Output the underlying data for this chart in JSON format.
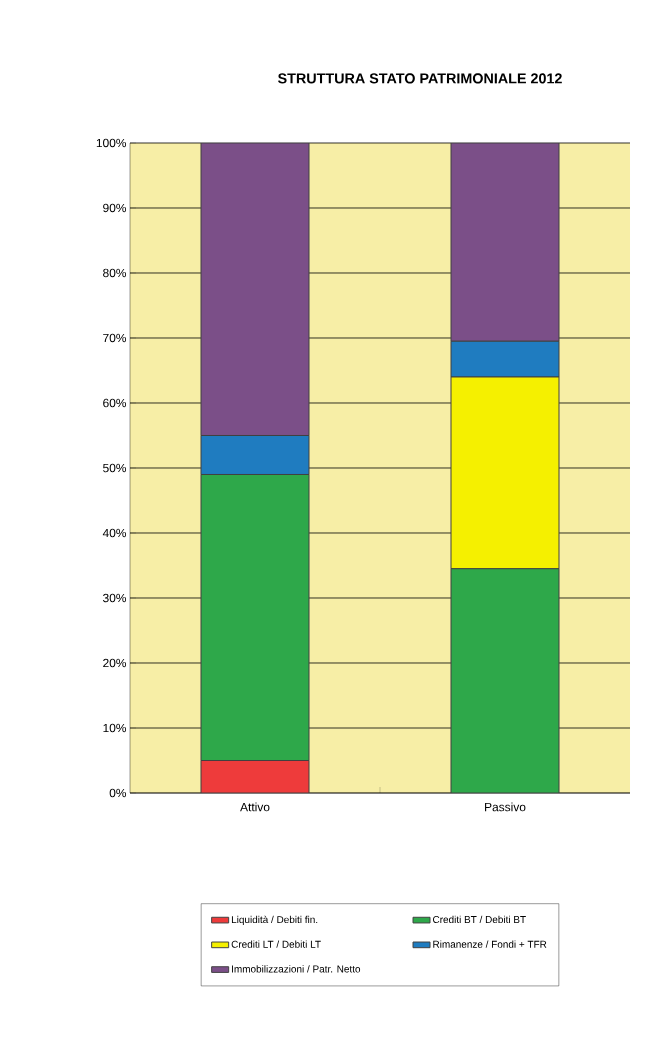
{
  "chart_data": {
    "type": "bar",
    "stacked": true,
    "title": "STRUTTURA STATO PATRIMONIALE 2012",
    "categories": [
      "Attivo",
      "Passivo"
    ],
    "series": [
      {
        "name": "Liquidità / Debiti fin.",
        "color": "#ee3b3b",
        "values": [
          5,
          0
        ]
      },
      {
        "name": "Crediti BT / Debiti BT",
        "color": "#2ea84a",
        "values": [
          44,
          34.5
        ]
      },
      {
        "name": "Crediti LT / Debiti LT",
        "color": "#f5f000",
        "values": [
          0,
          29.5
        ]
      },
      {
        "name": "Rimanenze / Fondi + TFR",
        "color": "#1f7cc0",
        "values": [
          6,
          5.5
        ]
      },
      {
        "name": "Immobilizzazioni / Patr. Netto",
        "color": "#7b4f88",
        "values": [
          45,
          30.5
        ]
      }
    ],
    "ylim": [
      0,
      100
    ],
    "yticks": [
      {
        "value": 0,
        "label": "0%"
      },
      {
        "value": 10,
        "label": "10%"
      },
      {
        "value": 20,
        "label": "20%"
      },
      {
        "value": 30,
        "label": "30%"
      },
      {
        "value": 40,
        "label": "40%"
      },
      {
        "value": 50,
        "label": "50%"
      },
      {
        "value": 60,
        "label": "60%"
      },
      {
        "value": 70,
        "label": "70%"
      },
      {
        "value": 80,
        "label": "80%"
      },
      {
        "value": 90,
        "label": "90%"
      },
      {
        "value": 100,
        "label": "100%"
      }
    ],
    "grid": "y",
    "legend": "bottom"
  }
}
